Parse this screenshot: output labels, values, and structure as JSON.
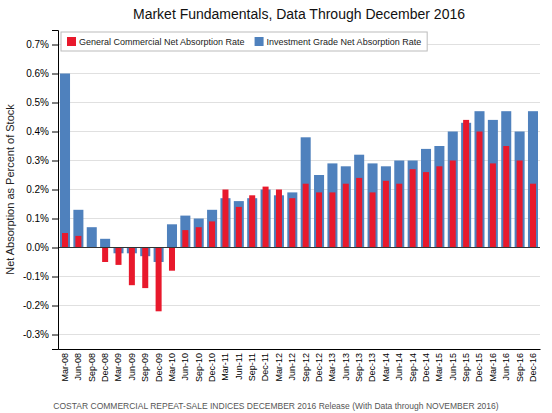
{
  "chart_data": {
    "type": "bar",
    "title": "Market Fundamentals, Data Through December 2016",
    "y_label": "Net Absorption as Percent of Stock",
    "annotations": [
      "COSTAR COMMERCIAL REPEAT-SALE INDICES DECEMBER 2016 Release (With Data through NOVEMBER 2016)"
    ],
    "categories": [
      "Mar-08",
      "Jun-08",
      "Sep-08",
      "Dec-08",
      "Mar-09",
      "Jun-09",
      "Sep-09",
      "Dec-09",
      "Mar-10",
      "Jun-10",
      "Sep-10",
      "Dec-10",
      "Mar-11",
      "Jun-11",
      "Sep-11",
      "Dec-11",
      "Mar-12",
      "Jun-12",
      "Sep-12",
      "Dec-12",
      "Mar-13",
      "Jun-13",
      "Sep-13",
      "Dec-13",
      "Mar-14",
      "Jun-14",
      "Sep-14",
      "Dec-14",
      "Mar-15",
      "Jun-15",
      "Sep-15",
      "Dec-15",
      "Mar-16",
      "Jun-16",
      "Sep-16",
      "Dec-16"
    ],
    "series": [
      {
        "name": "General Commercial Net Absorption Rate",
        "color": "#e8192c",
        "values": [
          0.05,
          0.04,
          0.0,
          -0.05,
          -0.06,
          -0.13,
          -0.14,
          -0.22,
          -0.08,
          0.06,
          0.07,
          0.09,
          0.2,
          0.14,
          0.18,
          0.21,
          0.2,
          0.17,
          0.22,
          0.19,
          0.19,
          0.22,
          0.24,
          0.19,
          0.23,
          0.22,
          0.27,
          0.26,
          0.28,
          0.3,
          0.44,
          0.4,
          0.29,
          0.35,
          0.3,
          0.22
        ]
      },
      {
        "name": "Investment Grade Net Absorption Rate",
        "color": "#4f81bd",
        "values": [
          0.6,
          0.13,
          0.07,
          0.03,
          -0.02,
          -0.02,
          -0.03,
          -0.05,
          0.08,
          0.11,
          0.1,
          0.13,
          0.17,
          0.16,
          0.17,
          0.2,
          0.18,
          0.19,
          0.38,
          0.25,
          0.29,
          0.28,
          0.32,
          0.29,
          0.28,
          0.3,
          0.3,
          0.34,
          0.35,
          0.4,
          0.43,
          0.47,
          0.44,
          0.47,
          0.4,
          0.47
        ]
      }
    ],
    "ylim": [
      -0.35,
      0.75
    ],
    "yticks": [
      {
        "value": -0.3,
        "label": "-0.3%"
      },
      {
        "value": -0.2,
        "label": "-0.2%"
      },
      {
        "value": -0.1,
        "label": "-0.1%"
      },
      {
        "value": 0.0,
        "label": "0.0%"
      },
      {
        "value": 0.1,
        "label": "0.1%"
      },
      {
        "value": 0.2,
        "label": "0.2%"
      },
      {
        "value": 0.3,
        "label": "0.3%"
      },
      {
        "value": 0.4,
        "label": "0.4%"
      },
      {
        "value": 0.5,
        "label": "0.5%"
      },
      {
        "value": 0.6,
        "label": "0.6%"
      },
      {
        "value": 0.7,
        "label": "0.7%"
      }
    ],
    "grid": true,
    "legend": "upper left"
  }
}
